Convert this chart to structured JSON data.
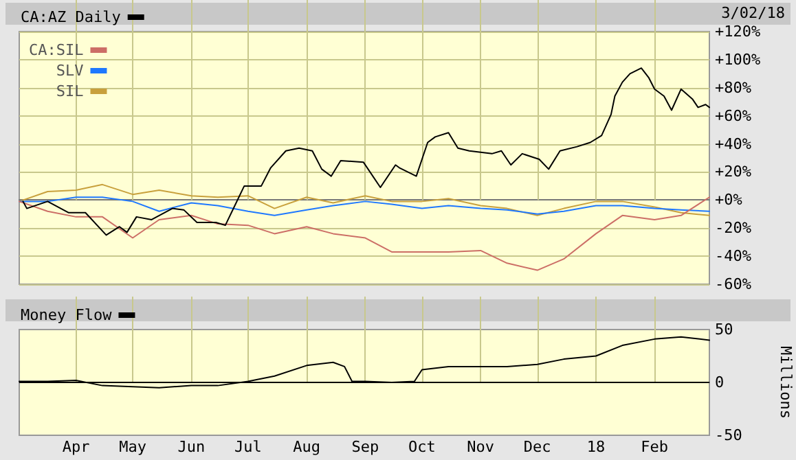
{
  "chart_data": [
    {
      "type": "line",
      "annotations": [
        "3/02/18"
      ],
      "xlim": [
        "2017-03-02",
        "2018-03-02"
      ],
      "xticks": [
        {
          "value": "2017-04-01",
          "label": null
        },
        {
          "value": "2017-05-01",
          "label": null
        },
        {
          "value": "2017-06-01",
          "label": null
        },
        {
          "value": "2017-07-01",
          "label": null
        },
        {
          "value": "2017-08-01",
          "label": null
        },
        {
          "value": "2017-09-01",
          "label": null
        },
        {
          "value": "2017-10-01",
          "label": null
        },
        {
          "value": "2017-11-01",
          "label": null
        },
        {
          "value": "2017-12-01",
          "label": null
        },
        {
          "value": "2018-01-01",
          "label": null
        },
        {
          "value": "2018-02-01",
          "label": null
        }
      ],
      "ylim": [
        -60,
        120
      ],
      "yticks": [
        {
          "value": -60,
          "label": "-60%"
        },
        {
          "value": -40,
          "label": "-40%"
        },
        {
          "value": -20,
          "label": "-20%"
        },
        {
          "value": 0,
          "label": "+0%"
        },
        {
          "value": 20,
          "label": "+20%"
        },
        {
          "value": 40,
          "label": "+40%"
        },
        {
          "value": 60,
          "label": "+60%"
        },
        {
          "value": 80,
          "label": "+80%"
        },
        {
          "value": 100,
          "label": "+100%"
        },
        {
          "value": 120,
          "label": "+120%"
        }
      ],
      "tick_labels": "y",
      "grid": true,
      "legend": "top left",
      "series": [
        {
          "name": "CA:AZ Daily",
          "color": "#000000",
          "x": [
            "2017-03-04",
            "2017-03-06",
            "2017-03-17",
            "2017-03-28",
            "2017-04-06",
            "2017-04-17",
            "2017-04-24",
            "2017-04-28",
            "2017-05-03",
            "2017-05-11",
            "2017-05-22",
            "2017-05-28",
            "2017-06-04",
            "2017-06-14",
            "2017-06-19",
            "2017-06-24",
            "2017-06-29",
            "2017-07-08",
            "2017-07-13",
            "2017-07-21",
            "2017-07-28",
            "2017-08-04",
            "2017-08-09",
            "2017-08-14",
            "2017-08-19",
            "2017-08-31",
            "2017-09-05",
            "2017-09-09",
            "2017-09-17",
            "2017-09-19",
            "2017-09-28",
            "2017-10-04",
            "2017-10-08",
            "2017-10-15",
            "2017-10-20",
            "2017-10-26",
            "2017-11-07",
            "2017-11-12",
            "2017-11-17",
            "2017-11-23",
            "2017-12-02",
            "2017-12-07",
            "2017-12-13",
            "2017-12-22",
            "2017-12-29",
            "2018-01-04",
            "2018-01-09",
            "2018-01-11",
            "2018-01-15",
            "2018-01-19",
            "2018-01-25",
            "2018-01-29",
            "2018-02-01",
            "2018-02-06",
            "2018-02-10",
            "2018-02-15",
            "2018-02-21",
            "2018-02-24",
            "2018-02-28",
            "2018-03-02"
          ],
          "values": [
            -1,
            -6,
            -1,
            -9,
            -9,
            -25,
            -19,
            -23,
            -12,
            -14,
            -6,
            -7,
            -16,
            -16,
            -18,
            -4,
            10,
            10,
            23,
            35,
            37,
            35,
            22,
            17,
            28,
            27,
            17,
            9,
            25,
            23,
            17,
            41,
            45,
            48,
            37,
            35,
            33,
            35,
            25,
            33,
            29,
            22,
            35,
            38,
            41,
            46,
            61,
            74,
            84,
            90,
            94,
            87,
            79,
            74,
            64,
            79,
            72,
            66,
            68,
            66
          ]
        },
        {
          "name": "CA:SIL",
          "color": "#cc6e66",
          "x": [
            "2017-03-02",
            "2017-03-17",
            "2017-04-01",
            "2017-04-15",
            "2017-05-01",
            "2017-05-15",
            "2017-06-01",
            "2017-06-15",
            "2017-07-01",
            "2017-07-15",
            "2017-08-01",
            "2017-08-15",
            "2017-09-01",
            "2017-09-15",
            "2017-10-01",
            "2017-10-15",
            "2017-11-01",
            "2017-11-15",
            "2017-12-01",
            "2017-12-15",
            "2018-01-01",
            "2018-01-15",
            "2018-02-01",
            "2018-02-15",
            "2018-03-02"
          ],
          "values": [
            -1,
            -8,
            -12,
            -12,
            -27,
            -14,
            -11,
            -17,
            -18,
            -24,
            -19,
            -24,
            -27,
            -37,
            -37,
            -37,
            -36,
            -45,
            -50,
            -42,
            -24,
            -11,
            -14,
            -11,
            2
          ]
        },
        {
          "name": "SLV",
          "color": "#1e78ff",
          "x": [
            "2017-03-02",
            "2017-03-17",
            "2017-04-01",
            "2017-04-15",
            "2017-05-01",
            "2017-05-15",
            "2017-06-01",
            "2017-06-15",
            "2017-07-01",
            "2017-07-15",
            "2017-08-01",
            "2017-08-15",
            "2017-09-01",
            "2017-09-15",
            "2017-10-01",
            "2017-10-15",
            "2017-11-01",
            "2017-11-15",
            "2017-12-01",
            "2017-12-15",
            "2018-01-01",
            "2018-01-15",
            "2018-02-01",
            "2018-02-15",
            "2018-03-02"
          ],
          "values": [
            -1,
            -1,
            2,
            2,
            -1,
            -8,
            -2,
            -4,
            -8,
            -11,
            -7,
            -4,
            -1,
            -3,
            -6,
            -4,
            -6,
            -7,
            -10,
            -8,
            -4,
            -4,
            -6,
            -7,
            -8
          ]
        },
        {
          "name": "SIL",
          "color": "#c8a03c",
          "x": [
            "2017-03-02",
            "2017-03-17",
            "2017-04-01",
            "2017-04-15",
            "2017-05-01",
            "2017-05-15",
            "2017-06-01",
            "2017-06-15",
            "2017-07-01",
            "2017-07-15",
            "2017-08-01",
            "2017-08-15",
            "2017-09-01",
            "2017-09-15",
            "2017-10-01",
            "2017-10-15",
            "2017-11-01",
            "2017-11-15",
            "2017-12-01",
            "2017-12-15",
            "2018-01-01",
            "2018-01-15",
            "2018-02-01",
            "2018-02-15",
            "2018-03-02"
          ],
          "values": [
            -1,
            6,
            7,
            11,
            4,
            7,
            3,
            2,
            3,
            -6,
            2,
            -2,
            3,
            -1,
            -1,
            1,
            -4,
            -6,
            -11,
            -6,
            -1,
            -1,
            -5,
            -9,
            -11
          ]
        }
      ]
    },
    {
      "type": "line",
      "ylabel": "Millions",
      "xlim": [
        "2017-03-02",
        "2018-03-02"
      ],
      "xticks": [
        {
          "value": "2017-04-01",
          "label": "Apr"
        },
        {
          "value": "2017-05-01",
          "label": "May"
        },
        {
          "value": "2017-06-01",
          "label": "Jun"
        },
        {
          "value": "2017-07-01",
          "label": "Jul"
        },
        {
          "value": "2017-08-01",
          "label": "Aug"
        },
        {
          "value": "2017-09-01",
          "label": "Sep"
        },
        {
          "value": "2017-10-01",
          "label": "Oct"
        },
        {
          "value": "2017-11-01",
          "label": "Nov"
        },
        {
          "value": "2017-12-01",
          "label": "Dec"
        },
        {
          "value": "2018-01-01",
          "label": "18"
        },
        {
          "value": "2018-02-01",
          "label": "Feb"
        }
      ],
      "ylim": [
        -50,
        50
      ],
      "yticks": [
        -50,
        0,
        50
      ],
      "grid": "x",
      "legend": "top left",
      "ref_lines": [
        {
          "axis": "y",
          "value": 0,
          "color": "#000000"
        }
      ],
      "series": [
        {
          "name": "Money Flow",
          "color": "#000000",
          "x": [
            "2017-03-02",
            "2017-03-17",
            "2017-04-01",
            "2017-04-15",
            "2017-05-01",
            "2017-05-15",
            "2017-06-01",
            "2017-06-15",
            "2017-07-01",
            "2017-07-15",
            "2017-08-01",
            "2017-08-15",
            "2017-08-21",
            "2017-08-25",
            "2017-09-01",
            "2017-09-15",
            "2017-09-27",
            "2017-10-01",
            "2017-10-15",
            "2017-11-01",
            "2017-11-15",
            "2017-12-01",
            "2017-12-15",
            "2018-01-01",
            "2018-01-15",
            "2018-02-01",
            "2018-02-15",
            "2018-03-02"
          ],
          "values": [
            1,
            1,
            2,
            -3,
            -4,
            -5,
            -3,
            -3,
            1,
            6,
            16,
            19,
            15,
            1,
            1,
            0,
            1,
            12,
            15,
            15,
            15,
            17,
            22,
            25,
            35,
            41,
            43,
            40
          ]
        }
      ]
    }
  ]
}
